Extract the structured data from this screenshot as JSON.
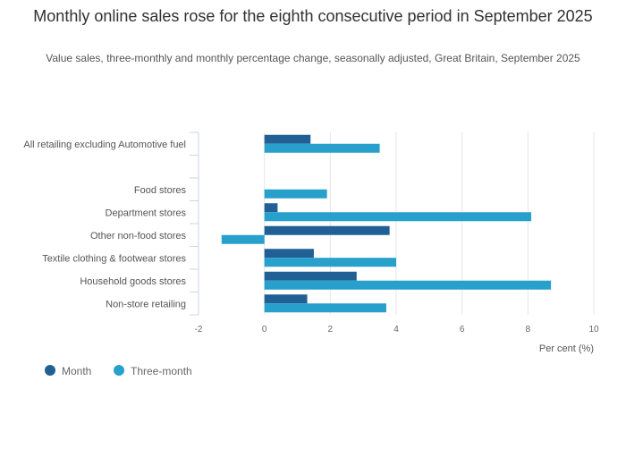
{
  "chart_data": {
    "type": "bar",
    "orientation": "horizontal",
    "title": "Monthly online sales rose for the eighth consecutive period in September 2025",
    "subtitle": "Value sales, three-monthly and monthly percentage change, seasonally adjusted, Great Britain, September 2025",
    "categories": [
      "All retailing excluding Automotive fuel",
      "",
      "Food stores",
      "Department stores",
      "Other non-food stores",
      "Textile clothing & footwear stores",
      "Household goods stores",
      "Non-store retailing"
    ],
    "series": [
      {
        "name": "Month",
        "color": "#206095",
        "values": [
          1.4,
          null,
          null,
          0.4,
          3.8,
          1.5,
          2.8,
          1.3
        ]
      },
      {
        "name": "Three-month",
        "color": "#27a0cc",
        "values": [
          3.5,
          null,
          1.9,
          8.1,
          -1.3,
          4.0,
          8.7,
          3.7
        ]
      }
    ],
    "xlabel": "Per cent (%)",
    "xlim": [
      -2,
      10
    ],
    "xticks": [
      -2,
      0,
      2,
      4,
      6,
      8,
      10
    ],
    "grid": true,
    "legend_position": "bottom-left"
  }
}
